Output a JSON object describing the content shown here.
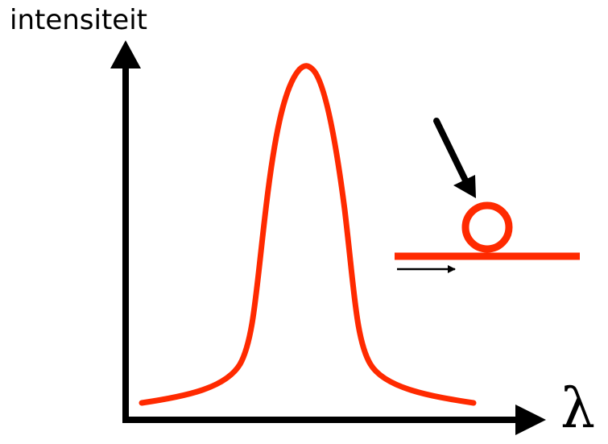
{
  "labels": {
    "y_axis": "intensiteit",
    "x_axis": "λ"
  },
  "colors": {
    "curve": "#ff2a00",
    "axes": "#000000",
    "background": "#ffffff"
  },
  "icons": {
    "ring_resonator": "ring-resonator-icon",
    "input_arrow": "arrow-icon",
    "waveguide": "waveguide-icon"
  }
}
